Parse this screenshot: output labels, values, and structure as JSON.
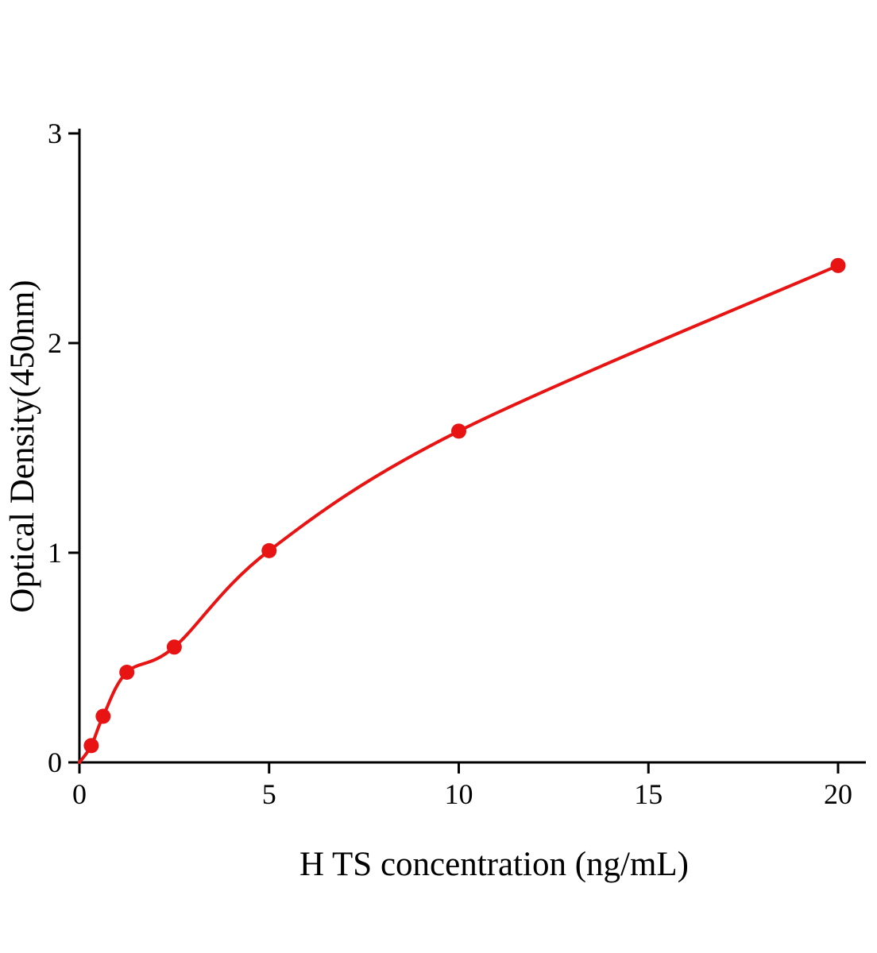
{
  "chart_data": {
    "type": "scatter",
    "title": "",
    "xlabel": "H TS concentration (ng/mL)",
    "ylabel": "Optical Density(450nm)",
    "points": {
      "x": [
        0.312,
        0.625,
        1.25,
        2.5,
        5,
        10,
        20
      ],
      "y": [
        0.08,
        0.22,
        0.43,
        0.55,
        1.01,
        1.58,
        2.37
      ]
    },
    "fit_curve": {
      "type": "smooth-through-points",
      "start": [
        0,
        0
      ]
    },
    "xlim": [
      0,
      20
    ],
    "ylim": [
      0,
      3
    ],
    "x_tick_values": [
      0,
      5,
      10,
      15,
      20
    ],
    "y_tick_values": [
      0,
      1,
      2,
      3
    ],
    "grid": false,
    "legend": null,
    "colors": {
      "line": "#e81313",
      "marker": "#e81313",
      "axis": "#000000",
      "text": "#000000"
    }
  }
}
